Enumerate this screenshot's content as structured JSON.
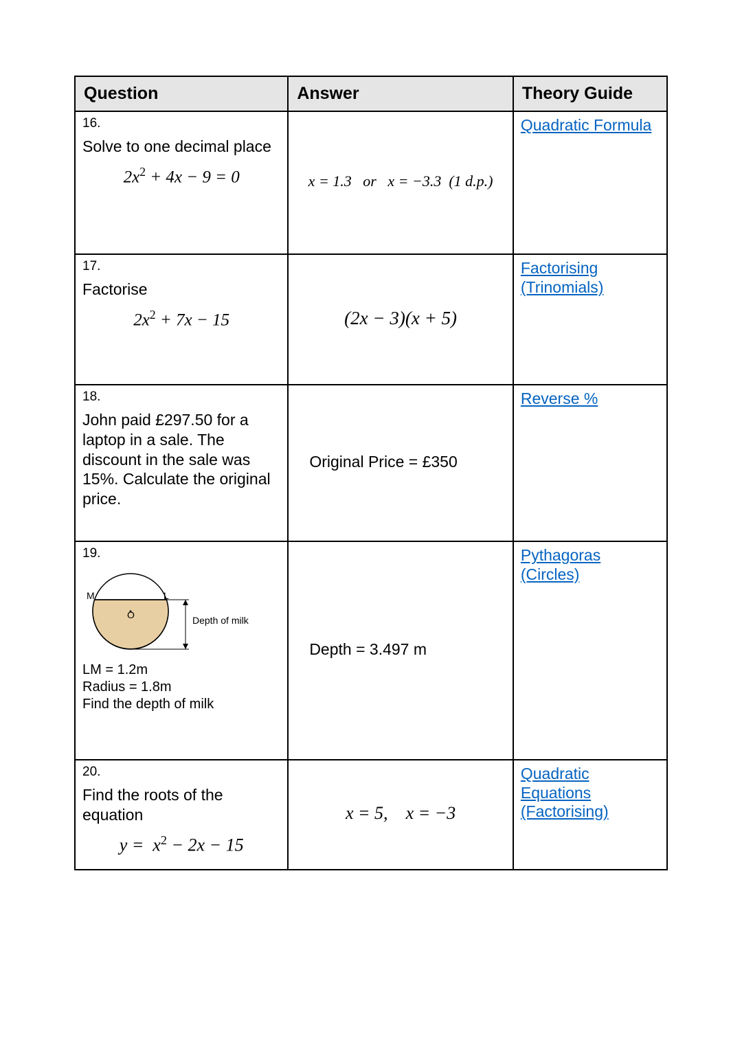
{
  "columns": {
    "question": "Question",
    "answer": "Answer",
    "theory": "Theory Guide"
  },
  "rows": {
    "r16": {
      "num": "16.",
      "prompt": "Solve to one decimal place",
      "equation_html": "2<i>x</i><sup>2</sup> + 4<i>x</i> − 9 = 0",
      "answer_html": "<i>x</i> = 1.3 &nbsp; <i>or</i> &nbsp; <i>x</i> = −3.3 &nbsp;(1 <i>d</i>.<i>p</i>.)",
      "theory_label": "Quadratic Formula"
    },
    "r17": {
      "num": "17.",
      "prompt": "Factorise",
      "equation_html": "2<i>x</i><sup>2</sup> + 7<i>x</i> − 15",
      "answer_html": "(2<i>x</i> − 3)(<i>x</i> + 5)",
      "theory_label": "Factorising (Trinomials)"
    },
    "r18": {
      "num": "18.",
      "prompt": "John paid £297.50 for a laptop in a sale. The discount in the sale was 15%. Calculate the original price.",
      "answer_text": "Original Price = £350",
      "theory_label": "Reverse %"
    },
    "r19": {
      "num": "19.",
      "diagram": {
        "label_M": "M",
        "label_L": "L",
        "label_O": "O",
        "depth_label": "Depth of milk",
        "circle_fill": "#e8cfa3",
        "circle_stroke": "#000000"
      },
      "given": "LM = 1.2m\nRadius = 1.8m\nFind the depth of milk",
      "answer_text": "Depth = 3.497 m",
      "theory_label": "Pythagoras (Circles)"
    },
    "r20": {
      "num": "20.",
      "prompt": "Find the roots of the equation",
      "equation_html": "<i>y</i> = &nbsp;x<sup>2</sup> − 2x − 15",
      "answer_html": "<i>x</i> = 5, &nbsp;&nbsp; <i>x</i> = −3",
      "theory_label": "Quadratic Equations (Factorising)"
    }
  },
  "link_color": "#0563c1"
}
